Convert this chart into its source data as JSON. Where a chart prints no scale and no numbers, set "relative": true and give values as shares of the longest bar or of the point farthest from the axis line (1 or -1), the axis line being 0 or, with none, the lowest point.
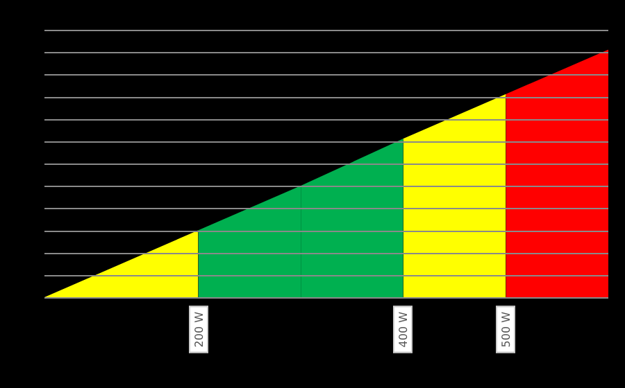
{
  "chart_data": {
    "type": "area",
    "relative": true,
    "xlim": [
      50,
      600
    ],
    "xticks": [
      {
        "value": 200,
        "label": "200 W"
      },
      {
        "value": 400,
        "label": "400 W"
      },
      {
        "value": 500,
        "label": "500 W"
      }
    ],
    "grid": "y",
    "legend": false,
    "marker": "none",
    "series": [
      {
        "color": "#ffff00",
        "x": [
          50,
          200
        ],
        "values": [
          0,
          0.27
        ]
      },
      {
        "color": "#00b050",
        "x": [
          200,
          300
        ],
        "values": [
          0.27,
          0.45
        ]
      },
      {
        "color": "#00b050",
        "x": [
          300,
          400
        ],
        "values": [
          0.45,
          0.64
        ]
      },
      {
        "color": "#ffff00",
        "x": [
          400,
          500
        ],
        "values": [
          0.64,
          0.82
        ]
      },
      {
        "color": "#ff0000",
        "x": [
          500,
          600
        ],
        "values": [
          0.82,
          1
        ]
      }
    ]
  }
}
